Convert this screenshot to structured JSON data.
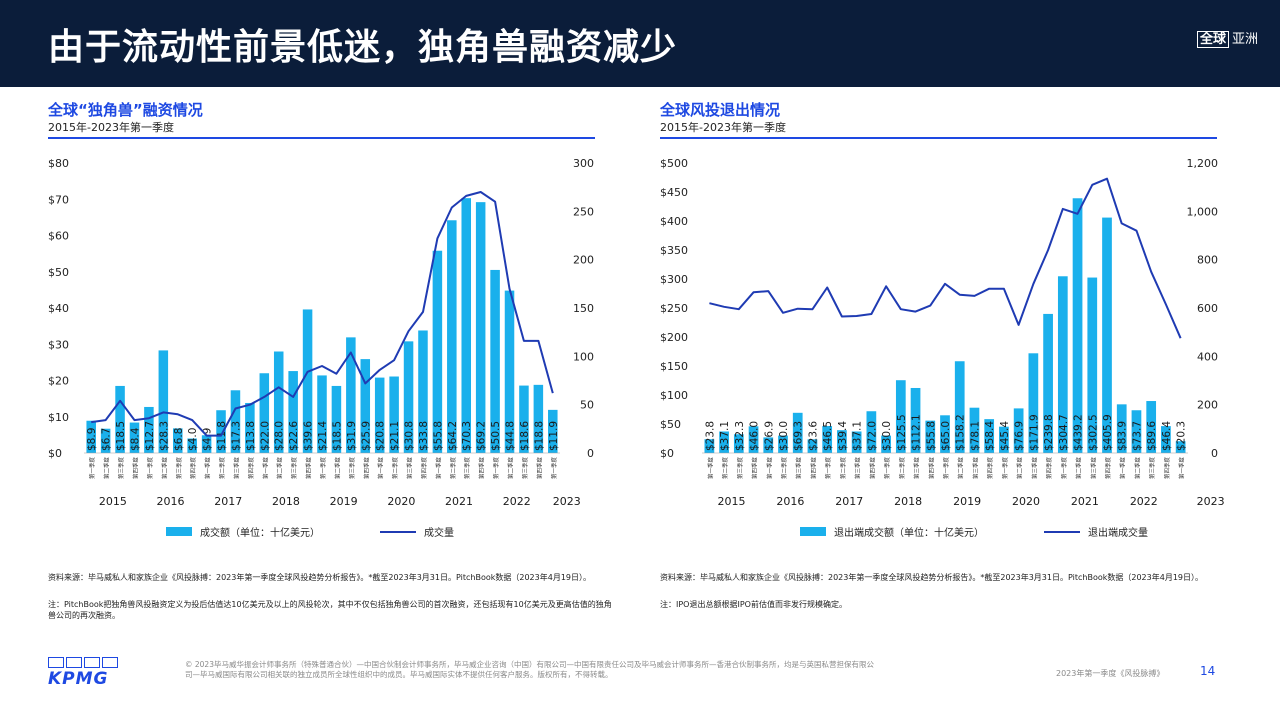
{
  "header": {
    "title": "由于流动性前景低迷，独角兽融资减少",
    "region_box": "全球",
    "region_label": "亚洲"
  },
  "quarter_labels": [
    "第一季度",
    "第二季度",
    "第三季度",
    "第四季度"
  ],
  "colors": {
    "bar": "#1ab0ec",
    "line": "#1f3bb3",
    "accent": "#1e49e2",
    "header_bg": "#0b1d3a"
  },
  "left_panel": {
    "title": "全球“独角兽”融资情况",
    "subtitle": "2015年-2023年第一季度",
    "legend_bar": "成交额（单位：十亿美元）",
    "legend_line": "成交量",
    "source": "资料来源：毕马威私人和家族企业《风投脉搏：2023年第一季度全球风投趋势分析报告》。*截至2023年3月31日。PitchBook数据（2023年4月19日）。",
    "note": "注：PitchBook把独角兽风投融资定义为投后估值达10亿美元及以上的风投轮次，其中不仅包括独角兽公司的首次融资，还包括现有10亿美元及更高估值的独角兽公司的再次融资。"
  },
  "right_panel": {
    "title": "全球风投退出情况",
    "subtitle": "2015年-2023年第一季度",
    "legend_bar": "退出端成交额（单位：十亿美元）",
    "legend_line": "退出端成交量",
    "source": "资料来源：毕马威私人和家族企业《风投脉搏：2023年第一季度全球风投趋势分析报告》。*截至2023年3月31日。PitchBook数据（2023年4月19日）。",
    "note": "注：IPO退出总额根据IPO前估值而非发行规模确定。"
  },
  "chart_data": [
    {
      "type": "bar",
      "title": "全球“独角兽”融资情况",
      "years": [
        "2015",
        "2016",
        "2017",
        "2018",
        "2019",
        "2020",
        "2021",
        "2022",
        "2023"
      ],
      "categories": [
        "2015Q1",
        "2015Q2",
        "2015Q3",
        "2015Q4",
        "2016Q1",
        "2016Q2",
        "2016Q3",
        "2016Q4",
        "2017Q1",
        "2017Q2",
        "2017Q3",
        "2017Q4",
        "2018Q1",
        "2018Q2",
        "2018Q3",
        "2018Q4",
        "2019Q1",
        "2019Q2",
        "2019Q3",
        "2019Q4",
        "2020Q1",
        "2020Q2",
        "2020Q3",
        "2020Q4",
        "2021Q1",
        "2021Q2",
        "2021Q3",
        "2021Q4",
        "2022Q1",
        "2022Q2",
        "2022Q3",
        "2022Q4",
        "2023Q1"
      ],
      "values": [
        8.9,
        6.7,
        18.5,
        8.4,
        12.7,
        28.3,
        6.8,
        4.0,
        4.9,
        11.8,
        17.3,
        13.8,
        22.0,
        28.0,
        22.6,
        39.6,
        21.4,
        18.5,
        31.9,
        25.9,
        20.8,
        21.1,
        30.8,
        33.8,
        55.8,
        64.2,
        70.3,
        69.2,
        50.5,
        44.8,
        18.6,
        18.8,
        11.9
      ],
      "labels": [
        "$8.9",
        "$6.7",
        "$18.5",
        "$8.4",
        "$12.7",
        "$28.3",
        "$6.8",
        "$4.0",
        "$4.9",
        "$11.8",
        "$17.3",
        "$13.8",
        "$22.0",
        "$28.0",
        "$22.6",
        "$39.6",
        "$21.4",
        "$18.5",
        "$31.9",
        "$25.9",
        "$20.8",
        "$21.1",
        "$30.8",
        "$33.8",
        "$55.8",
        "$64.2",
        "$70.3",
        "$69.2",
        "$50.5",
        "$44.8",
        "$18.6",
        "$18.8",
        "$11.9"
      ],
      "line": [
        32,
        34,
        54,
        34,
        36,
        42,
        40,
        34,
        18,
        18,
        46,
        50,
        58,
        68,
        58,
        84,
        90,
        82,
        104,
        72,
        86,
        96,
        126,
        146,
        222,
        254,
        266,
        270,
        260,
        170,
        116,
        116,
        62
      ],
      "ylim": [
        0,
        80
      ],
      "y_ticks": [
        "$0",
        "$10",
        "$20",
        "$30",
        "$40",
        "$50",
        "$60",
        "$70",
        "$80"
      ],
      "y2lim": [
        0,
        300
      ],
      "y2_ticks": [
        "0",
        "50",
        "100",
        "150",
        "200",
        "250",
        "300"
      ]
    },
    {
      "type": "bar",
      "title": "全球风投退出情况",
      "years": [
        "2015",
        "2016",
        "2017",
        "2018",
        "2019",
        "2020",
        "2021",
        "2022",
        "2023"
      ],
      "categories": [
        "2015Q1",
        "2015Q2",
        "2015Q3",
        "2015Q4",
        "2016Q1",
        "2016Q2",
        "2016Q3",
        "2016Q4",
        "2017Q1",
        "2017Q2",
        "2017Q3",
        "2017Q4",
        "2018Q1",
        "2018Q2",
        "2018Q3",
        "2018Q4",
        "2019Q1",
        "2019Q2",
        "2019Q3",
        "2019Q4",
        "2020Q1",
        "2020Q2",
        "2020Q3",
        "2020Q4",
        "2021Q1",
        "2021Q2",
        "2021Q3",
        "2021Q4",
        "2022Q1",
        "2022Q2",
        "2022Q3",
        "2022Q4",
        "2023Q1"
      ],
      "values": [
        23.8,
        37.1,
        32.3,
        46.0,
        26.9,
        30.0,
        69.3,
        23.6,
        46.5,
        39.4,
        37.1,
        72.0,
        30.0,
        125.5,
        112.1,
        55.8,
        65.0,
        158.2,
        78.1,
        58.4,
        45.4,
        76.9,
        171.9,
        239.8,
        304.7,
        439.2,
        302.5,
        405.9,
        83.9,
        73.7,
        89.6,
        46.4,
        20.3
      ],
      "labels": [
        "$23.8",
        "$37.1",
        "$32.3",
        "$46.0",
        "$26.9",
        "$30.0",
        "$69.3",
        "$23.6",
        "$46.5",
        "$39.4",
        "$37.1",
        "$72.0",
        "$30.0",
        "$125.5",
        "$112.1",
        "$55.8",
        "$65.0",
        "$158.2",
        "$78.1",
        "$58.4",
        "$45.4",
        "$76.9",
        "$171.9",
        "$239.8",
        "$304.7",
        "$439.2",
        "$302.5",
        "$405.9",
        "$83.9",
        "$73.7",
        "$89.6",
        "$46.4",
        "$20.3"
      ],
      "line": [
        620,
        605,
        595,
        665,
        670,
        580,
        597,
        595,
        685,
        565,
        567,
        575,
        690,
        595,
        585,
        610,
        700,
        655,
        650,
        680,
        680,
        530,
        700,
        840,
        1010,
        990,
        1110,
        1135,
        950,
        920,
        750,
        615,
        475
      ],
      "ylim": [
        0,
        500
      ],
      "y_ticks": [
        "$0",
        "$50",
        "$100",
        "$150",
        "$200",
        "$250",
        "$300",
        "$350",
        "$400",
        "$450",
        "$500"
      ],
      "y2lim": [
        0,
        1200
      ],
      "y2_ticks": [
        "0",
        "200",
        "400",
        "600",
        "800",
        "1,000",
        "1,200"
      ]
    }
  ],
  "footer": {
    "logo": "KPMG",
    "copyright": "© 2023毕马威华振会计师事务所（特殊普通合伙）—中国合伙制会计师事务所，毕马威企业咨询（中国）有限公司—中国有限责任公司及毕马威会计师事务所—香港合伙制事务所，均是与英国私营担保有限公司—毕马威国际有限公司相关联的独立成员所全球性组织中的成员。毕马威国际实体不提供任何客户服务。版权所有，不得转载。",
    "report": "2023年第一季度《风投脉搏》",
    "page": "14"
  }
}
